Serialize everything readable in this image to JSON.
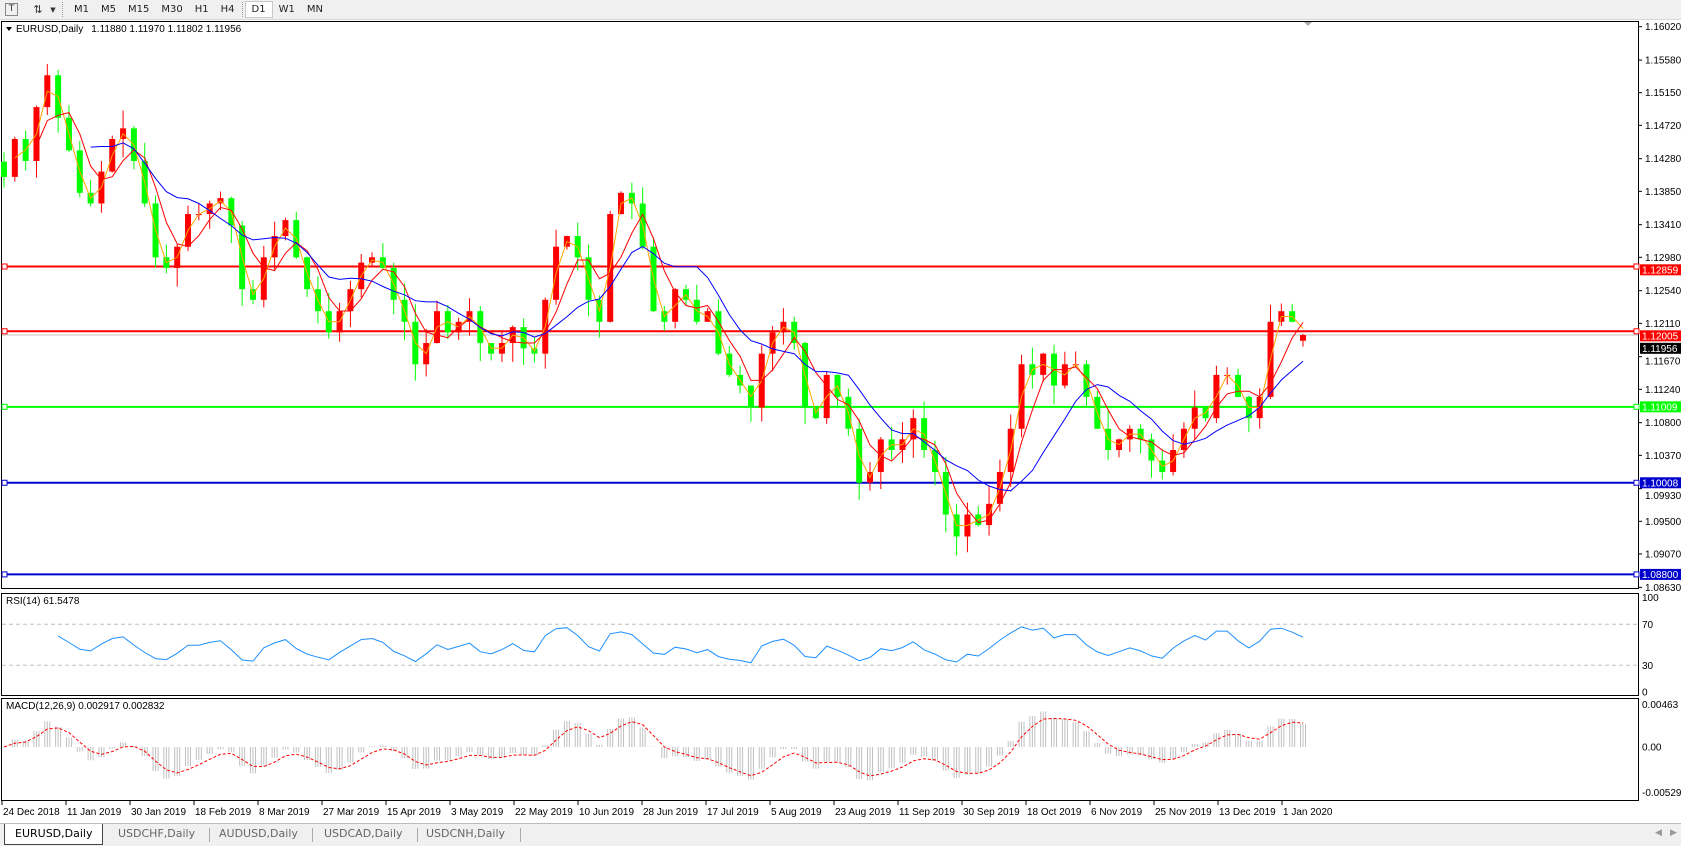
{
  "toolbar": {
    "text_tool_icon": "text-T-icon",
    "line_tool_icon": "line-arrows-icon",
    "timeframes": [
      "M1",
      "M5",
      "M15",
      "M30",
      "H1",
      "H4",
      "D1",
      "W1",
      "MN"
    ],
    "active_timeframe": "D1"
  },
  "chart_header": {
    "symbol": "EURUSD,Daily",
    "ohlc": "1.11880 1.11970 1.11802 1.11956"
  },
  "rsi_panel": {
    "label": "RSI(14) 61.5478",
    "levels": [
      70,
      30
    ],
    "scale": [
      "100",
      "70",
      "30",
      "0"
    ]
  },
  "macd_panel": {
    "label": "MACD(12,26,9) 0.002917 0.002832",
    "scale": [
      "0.00463",
      "0.00",
      "-0.005299"
    ]
  },
  "colors": {
    "bull_candle": "#ff0000",
    "bear_candle": "#00ff00",
    "ma_fast": "#ffa500",
    "ma_mid": "#ff0000",
    "ma_slow": "#0000ff",
    "rsi_line": "#1e90ff",
    "macd_hist": "#c0c0c0",
    "macd_signal": "#ff0000"
  },
  "chart_data": {
    "type": "candlestick",
    "title": "EURUSD,Daily",
    "ylim": [
      1.0863,
      1.1602
    ],
    "y_ticks": [
      "1.16020",
      "1.15580",
      "1.15150",
      "1.14720",
      "1.14280",
      "1.13850",
      "1.13410",
      "1.12980",
      "1.12540",
      "1.12110",
      "1.11670",
      "1.11240",
      "1.10800",
      "1.10370",
      "1.09930",
      "1.09500",
      "1.09070",
      "1.08630"
    ],
    "x_ticks": [
      "24 Dec 2018",
      "11 Jan 2019",
      "30 Jan 2019",
      "18 Feb 2019",
      "8 Mar 2019",
      "27 Mar 2019",
      "15 Apr 2019",
      "3 May 2019",
      "22 May 2019",
      "10 Jun 2019",
      "28 Jun 2019",
      "17 Jul 2019",
      "5 Aug 2019",
      "23 Aug 2019",
      "11 Sep 2019",
      "30 Sep 2019",
      "18 Oct 2019",
      "6 Nov 2019",
      "25 Nov 2019",
      "13 Dec 2019",
      "1 Jan 2020"
    ],
    "close": [
      1.1404,
      1.1454,
      1.1425,
      1.1496,
      1.1538,
      1.1482,
      1.1439,
      1.1383,
      1.1369,
      1.1411,
      1.1454,
      1.1468,
      1.1425,
      1.1369,
      1.1298,
      1.1284,
      1.1312,
      1.1355,
      1.1355,
      1.1369,
      1.1376,
      1.134,
      1.1256,
      1.1242,
      1.1298,
      1.1326,
      1.1347,
      1.1298,
      1.1256,
      1.1227,
      1.1199,
      1.1227,
      1.1256,
      1.1291,
      1.1298,
      1.1284,
      1.1242,
      1.1213,
      1.1157,
      1.1185,
      1.1227,
      1.1199,
      1.1213,
      1.1227,
      1.1185,
      1.1171,
      1.1185,
      1.1206,
      1.1178,
      1.1171,
      1.1242,
      1.1312,
      1.1326,
      1.1298,
      1.1242,
      1.1213,
      1.1355,
      1.1383,
      1.1369,
      1.1312,
      1.1227,
      1.1213,
      1.1256,
      1.1242,
      1.1213,
      1.1227,
      1.1171,
      1.1143,
      1.1129,
      1.11,
      1.1171,
      1.1199,
      1.1213,
      1.1185,
      1.11,
      1.1086,
      1.1143,
      1.1114,
      1.1072,
      1.1001,
      1.1015,
      1.1058,
      1.1044,
      1.1058,
      1.1086,
      1.1044,
      1.1015,
      1.0959,
      1.093,
      1.0959,
      1.0945,
      1.0973,
      1.1015,
      1.1072,
      1.1157,
      1.1143,
      1.1171,
      1.1129,
      1.1157,
      1.1157,
      1.1114,
      1.1072,
      1.1044,
      1.1058,
      1.1072,
      1.1058,
      1.103,
      1.1015,
      1.1044,
      1.1072,
      1.11,
      1.1086,
      1.1143,
      1.1143,
      1.1114,
      1.1086,
      1.1114,
      1.1213,
      1.1227,
      1.1213,
      1.1196
    ],
    "last_candle": {
      "open": 1.1188,
      "high": 1.1197,
      "low": 1.11802,
      "close": 1.11956
    },
    "horizontal_lines": [
      {
        "price": 1.12859,
        "label": "1.12859",
        "color": "#ff0000"
      },
      {
        "price": 1.12005,
        "label": "1.12005",
        "color": "#ff0000"
      },
      {
        "price": 1.11009,
        "label": "1.11009",
        "color": "#00ff00"
      },
      {
        "price": 1.10008,
        "label": "1.10008",
        "color": "#0000cc"
      },
      {
        "price": 1.088,
        "label": "1.08800",
        "color": "#0000cc"
      }
    ],
    "bid_line": {
      "price": 1.11956,
      "label": "1.11956"
    },
    "grid": false
  },
  "tabs": [
    {
      "label": "EURUSD,Daily",
      "active": true
    },
    {
      "label": "USDCHF,Daily"
    },
    {
      "label": "AUDUSD,Daily"
    },
    {
      "label": "USDCAD,Daily"
    },
    {
      "label": "USDCNH,Daily"
    }
  ]
}
